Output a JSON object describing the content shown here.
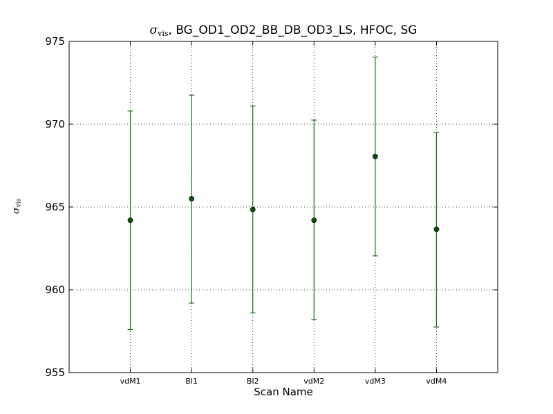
{
  "chart_data": {
    "type": "scatter",
    "title_symbol": "σ",
    "title_subscript": "vis",
    "title_rest": ", BG_OD1_OD2_BB_DB_OD3_LS, HFOC, SG",
    "xlabel": "Scan Name",
    "ylabel_symbol": "σ",
    "ylabel_subscript": "vis",
    "categories": [
      "vdM1",
      "BI1",
      "BI2",
      "vdM2",
      "vdM3",
      "vdM4"
    ],
    "values": [
      964.2,
      965.5,
      964.85,
      964.2,
      968.05,
      963.65
    ],
    "error_low": [
      957.6,
      959.2,
      958.6,
      958.2,
      962.05,
      957.75
    ],
    "error_high": [
      970.8,
      971.75,
      971.1,
      970.25,
      974.05,
      969.5
    ],
    "ylim": [
      955,
      975
    ],
    "yticks": [
      955,
      960,
      965,
      970,
      975
    ],
    "grid": true,
    "color": "#1f6b1f",
    "marker_color": "#0a4f0a"
  }
}
